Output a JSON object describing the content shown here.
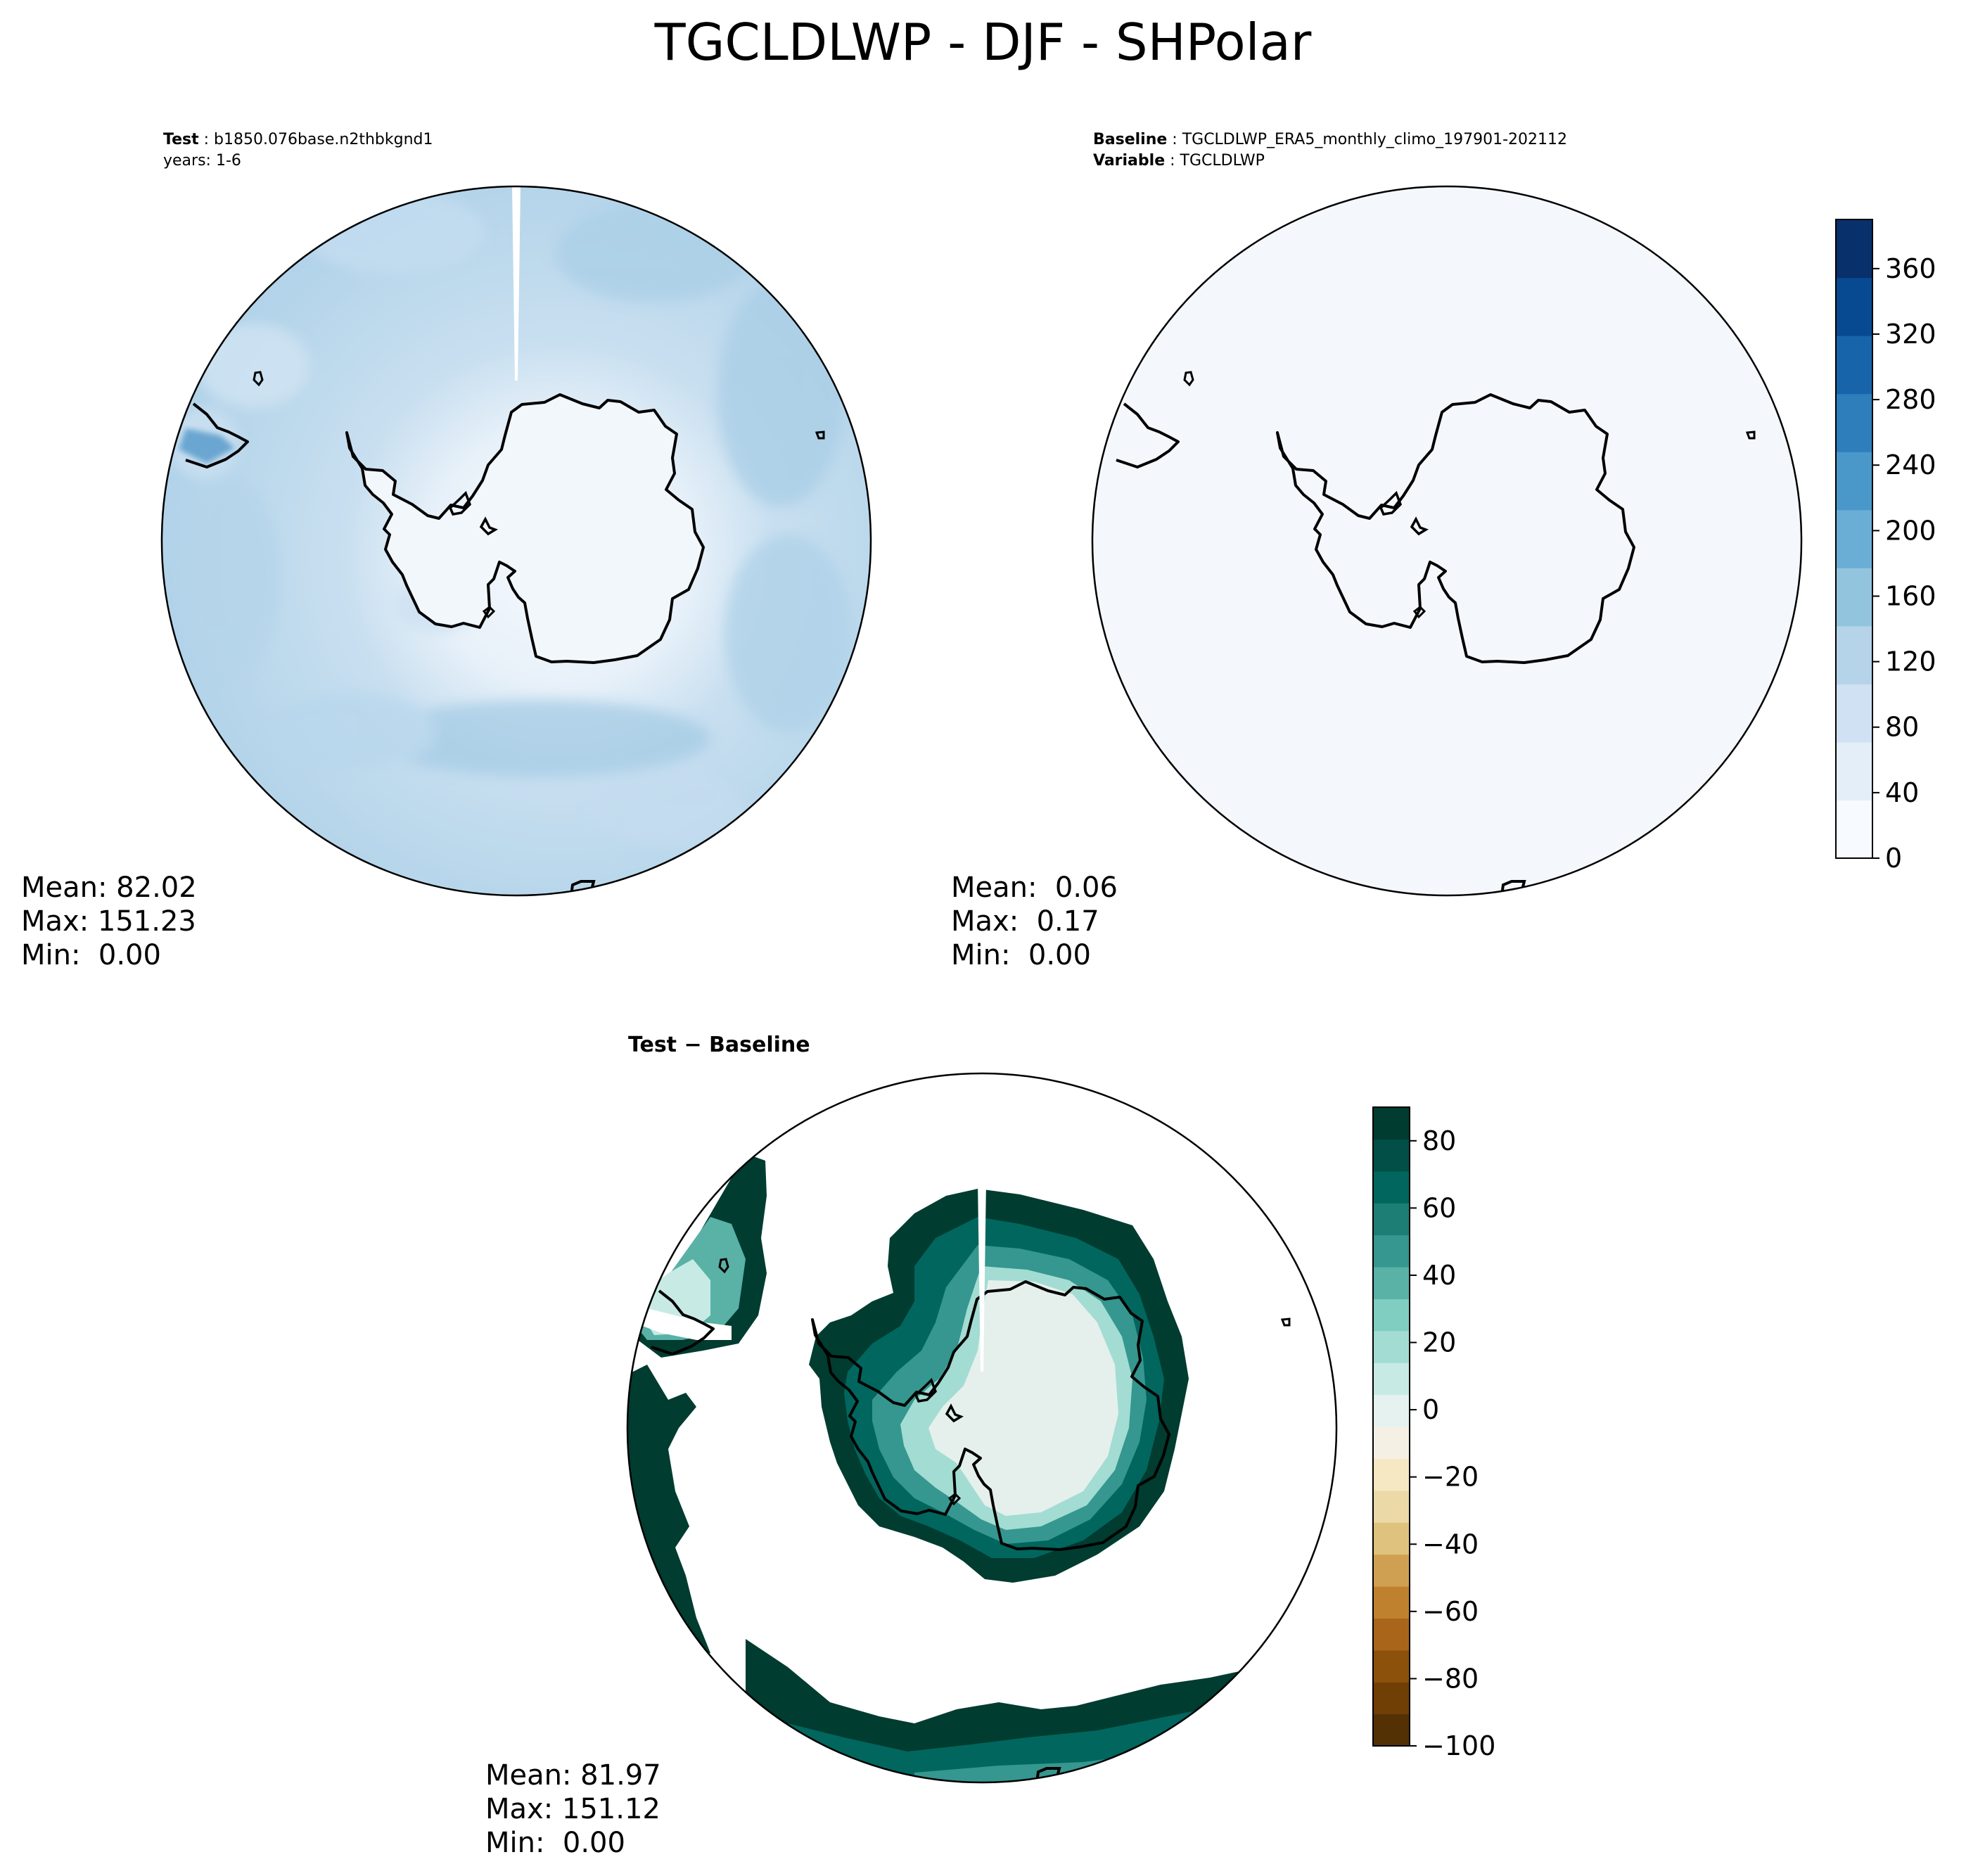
{
  "title": "TGCLDLWP - DJF - SHPolar",
  "panels": {
    "test": {
      "label_key": "Test",
      "case_name": "b1850.076base.n2thbkgnd1",
      "years_line": "years: 1-6",
      "mean_line": "Mean: 82.02",
      "max_line": "Max: 151.23",
      "min_line": "Min:  0.00"
    },
    "baseline": {
      "label_key": "Baseline",
      "case_name": "TGCLDLWP_ERA5_monthly_climo_197901-202112",
      "variable_key": "Variable",
      "variable_name": "TGCLDLWP",
      "mean_line": "Mean:  0.06",
      "max_line": "Max:  0.17",
      "min_line": "Min:  0.00"
    },
    "difference": {
      "title": "Test − Baseline",
      "mean_line": "Mean: 81.97",
      "max_line": "Max: 151.12",
      "min_line": "Min:  0.00"
    }
  },
  "colorbars": {
    "main": {
      "ticks": [
        0,
        40,
        80,
        120,
        160,
        200,
        240,
        280,
        320,
        360
      ],
      "tick_labels": [
        "0",
        "40",
        "80",
        "120",
        "160",
        "200",
        "240",
        "280",
        "320",
        "360"
      ],
      "range": [
        0,
        390
      ],
      "colors": [
        "#f7fbff",
        "#e3eef9",
        "#cfe1f2",
        "#b5d4e9",
        "#93c4de",
        "#6aaed6",
        "#4a98c9",
        "#2e7ebc",
        "#1764ab",
        "#084a91",
        "#08306b"
      ]
    },
    "diff": {
      "ticks": [
        -100,
        -80,
        -60,
        -40,
        -20,
        0,
        20,
        40,
        60,
        80
      ],
      "tick_labels": [
        "−100",
        "−80",
        "−60",
        "−40",
        "−20",
        "0",
        "20",
        "40",
        "60",
        "80"
      ],
      "range": [
        -100,
        90
      ],
      "colors": [
        "#543005",
        "#6f3f06",
        "#8c510a",
        "#a9661a",
        "#bf812d",
        "#d0a052",
        "#dfc27d",
        "#ebd9a7",
        "#f6e8c3",
        "#f5f0e4",
        "#e5f2ef",
        "#c7eae5",
        "#a3dcd2",
        "#80cdc1",
        "#5ab1a6",
        "#35978f",
        "#1d7e75",
        "#01665e",
        "#014f46",
        "#003c30"
      ]
    }
  }
}
